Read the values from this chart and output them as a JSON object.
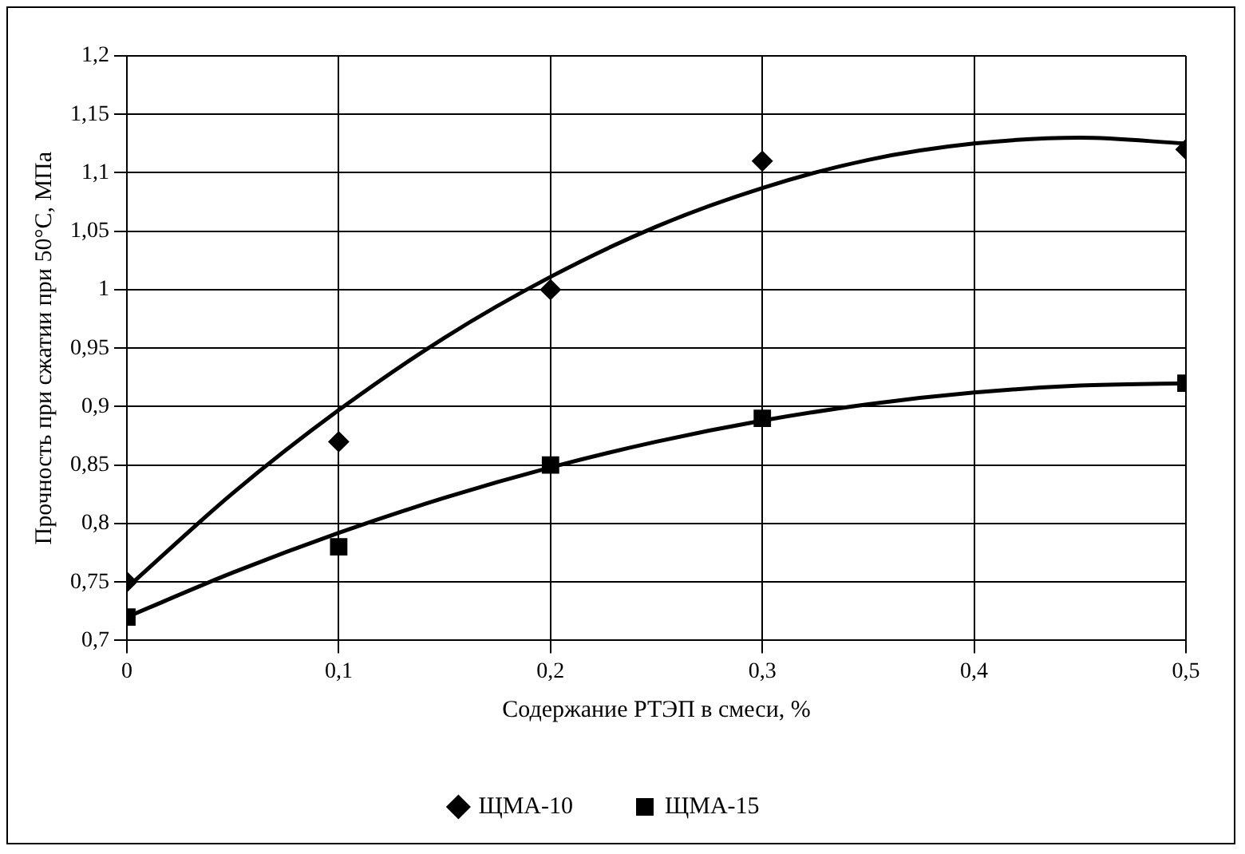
{
  "chart_data": {
    "type": "scatter",
    "xlabel": "Содержание РТЭП в смеси, %",
    "ylabel": "Прочность при сжатии при 50°С, МПа",
    "xlim": [
      0,
      0.5
    ],
    "xticks": [
      0,
      {
        "value": 0.1,
        "label": "0,1"
      },
      {
        "value": 0.2,
        "label": "0,2"
      },
      {
        "value": 0.3,
        "label": "0,3"
      },
      {
        "value": 0.4,
        "label": "0,4"
      },
      {
        "value": 0.5,
        "label": "0,5"
      }
    ],
    "ylim": [
      0.7,
      1.2
    ],
    "yticks": [
      {
        "value": 0.7,
        "label": "0,7"
      },
      {
        "value": 0.75,
        "label": "0,75"
      },
      {
        "value": 0.8,
        "label": "0,8"
      },
      {
        "value": 0.85,
        "label": "0,85"
      },
      {
        "value": 0.9,
        "label": "0,9"
      },
      {
        "value": 0.95,
        "label": "0,95"
      },
      1,
      {
        "value": 1.05,
        "label": "1,05"
      },
      {
        "value": 1.1,
        "label": "1,1"
      },
      {
        "value": 1.15,
        "label": "1,15"
      },
      {
        "value": 1.2,
        "label": "1,2"
      }
    ],
    "grid": true,
    "legend": "bottom",
    "series": [
      {
        "type": "line",
        "color": "#000000",
        "x": [
          0,
          0.05,
          0.1,
          0.15,
          0.2,
          0.25,
          0.3,
          0.35,
          0.4,
          0.45,
          0.5
        ],
        "values": [
          0.745,
          0.826,
          0.897,
          0.959,
          1.011,
          1.054,
          1.087,
          1.111,
          1.125,
          1.13,
          1.125
        ]
      },
      {
        "type": "line",
        "color": "#000000",
        "x": [
          0,
          0.05,
          0.1,
          0.15,
          0.2,
          0.25,
          0.3,
          0.35,
          0.4,
          0.45,
          0.5
        ],
        "values": [
          0.72,
          0.758,
          0.792,
          0.822,
          0.848,
          0.87,
          0.888,
          0.902,
          0.912,
          0.918,
          0.92
        ]
      },
      {
        "type": "scatter",
        "name": "ЩМА-10",
        "color": "#000000",
        "marker": "diamond",
        "x": [
          0,
          0.1,
          0.2,
          0.3,
          0.5
        ],
        "values": [
          0.75,
          0.87,
          1.0,
          1.11,
          1.12
        ]
      },
      {
        "type": "scatter",
        "name": "ЩМА-15",
        "color": "#000000",
        "marker": "square",
        "x": [
          0,
          0.1,
          0.2,
          0.3,
          0.5
        ],
        "values": [
          0.72,
          0.78,
          0.85,
          0.89,
          0.92
        ]
      }
    ]
  }
}
